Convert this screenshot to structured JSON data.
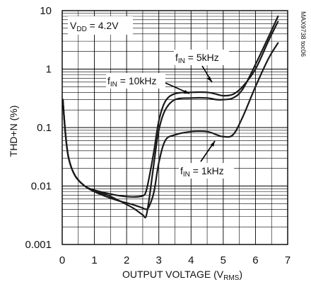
{
  "chart_data": {
    "type": "line",
    "xlabel": "OUTPUT VOLTAGE (V",
    "xlabel_sub": "RMS",
    "xlabel_end": ")",
    "ylabel": "THD+N (%)",
    "xlim": [
      0,
      7
    ],
    "ylim": [
      0.001,
      10
    ],
    "yscale": "log",
    "grid": true,
    "x_ticks": [
      "0",
      "1",
      "2",
      "3",
      "4",
      "5",
      "6",
      "7"
    ],
    "y_ticks": [
      "0.001",
      "0.01",
      "0.1",
      "1",
      "10"
    ],
    "annotations": {
      "vdd": {
        "main": "V",
        "sub": "DD",
        "rest": " = 4.2V"
      },
      "f5k": {
        "main": "f",
        "sub": "IN",
        "rest": " = 5kHz"
      },
      "f10k": {
        "main": "f",
        "sub": "IN",
        "rest": " = 10kHz"
      },
      "f1k": {
        "main": "f",
        "sub": "IN",
        "rest": " = 1kHz"
      }
    },
    "figure_code": "MAX9738 toc06",
    "series": [
      {
        "key": "f1k",
        "x": [
          0.02,
          0.1,
          0.2,
          0.4,
          0.7,
          1.0,
          1.4,
          1.8,
          2.2,
          2.5,
          2.6,
          2.7,
          2.85,
          3.0,
          3.2,
          3.5,
          4.0,
          4.5,
          4.8,
          5.0,
          5.3,
          5.6,
          6.0,
          6.4,
          6.7
        ],
        "y": [
          0.3,
          0.08,
          0.03,
          0.015,
          0.01,
          0.008,
          0.0065,
          0.0055,
          0.0048,
          0.0042,
          0.004,
          0.0045,
          0.008,
          0.025,
          0.06,
          0.075,
          0.085,
          0.085,
          0.075,
          0.07,
          0.075,
          0.15,
          0.5,
          1.5,
          2.8
        ]
      },
      {
        "key": "f5k",
        "x": [
          0.02,
          0.1,
          0.2,
          0.4,
          0.7,
          1.0,
          1.4,
          1.8,
          2.2,
          2.5,
          2.6,
          2.7,
          2.85,
          3.0,
          3.2,
          3.5,
          4.0,
          4.5,
          4.8,
          5.0,
          5.3,
          5.6,
          6.0,
          6.4,
          6.7
        ],
        "y": [
          0.3,
          0.08,
          0.03,
          0.015,
          0.01,
          0.0085,
          0.0075,
          0.0068,
          0.0065,
          0.0068,
          0.008,
          0.014,
          0.04,
          0.13,
          0.28,
          0.38,
          0.4,
          0.4,
          0.37,
          0.35,
          0.37,
          0.5,
          1.0,
          3.0,
          6.5
        ]
      },
      {
        "key": "f10k",
        "x": [
          0.02,
          0.1,
          0.2,
          0.4,
          0.7,
          1.0,
          1.4,
          1.8,
          2.2,
          2.5,
          2.6,
          2.7,
          2.85,
          3.0,
          3.2,
          3.5,
          4.0,
          4.5,
          4.8,
          5.0,
          5.3,
          5.6,
          6.0,
          6.4,
          6.7
        ],
        "y": [
          0.3,
          0.08,
          0.03,
          0.015,
          0.01,
          0.0082,
          0.007,
          0.0055,
          0.0042,
          0.0032,
          0.003,
          0.006,
          0.025,
          0.09,
          0.2,
          0.3,
          0.32,
          0.32,
          0.3,
          0.3,
          0.32,
          0.45,
          1.2,
          3.5,
          8.0
        ]
      }
    ]
  }
}
